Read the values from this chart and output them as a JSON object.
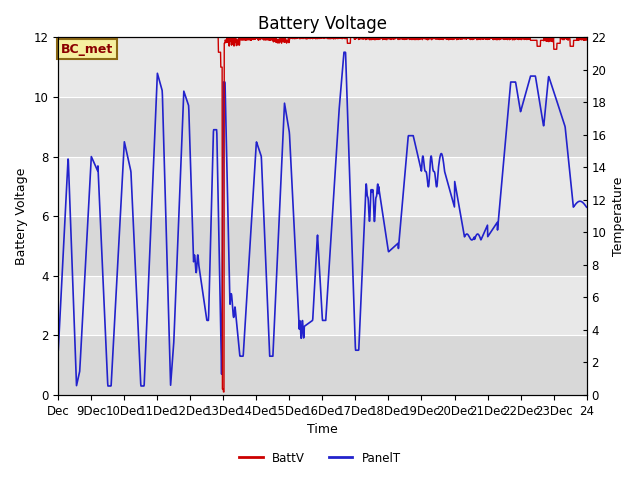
{
  "title": "Battery Voltage",
  "xlabel": "Time",
  "ylabel_left": "Battery Voltage",
  "ylabel_right": "Temperature",
  "xlim": [
    0,
    16
  ],
  "ylim_left": [
    0,
    12
  ],
  "ylim_right": [
    0,
    22
  ],
  "x_tick_labels": [
    "Dec",
    "9Dec",
    "10Dec",
    "11Dec",
    "12Dec",
    "13Dec",
    "14Dec",
    "15Dec",
    "16Dec",
    "17Dec",
    "18Dec",
    "19Dec",
    "20Dec",
    "21Dec",
    "22Dec",
    "23Dec",
    "24"
  ],
  "annotation_label": "BC_met",
  "background_color": "#ffffff",
  "plot_bg_color": "#e0e0e0",
  "grid_color": "#ffffff",
  "batt_color": "#cc0000",
  "panel_color": "#2222cc",
  "legend_batt": "BattV",
  "legend_panel": "PanelT",
  "title_fontsize": 12,
  "axis_label_fontsize": 9,
  "tick_fontsize": 8.5
}
